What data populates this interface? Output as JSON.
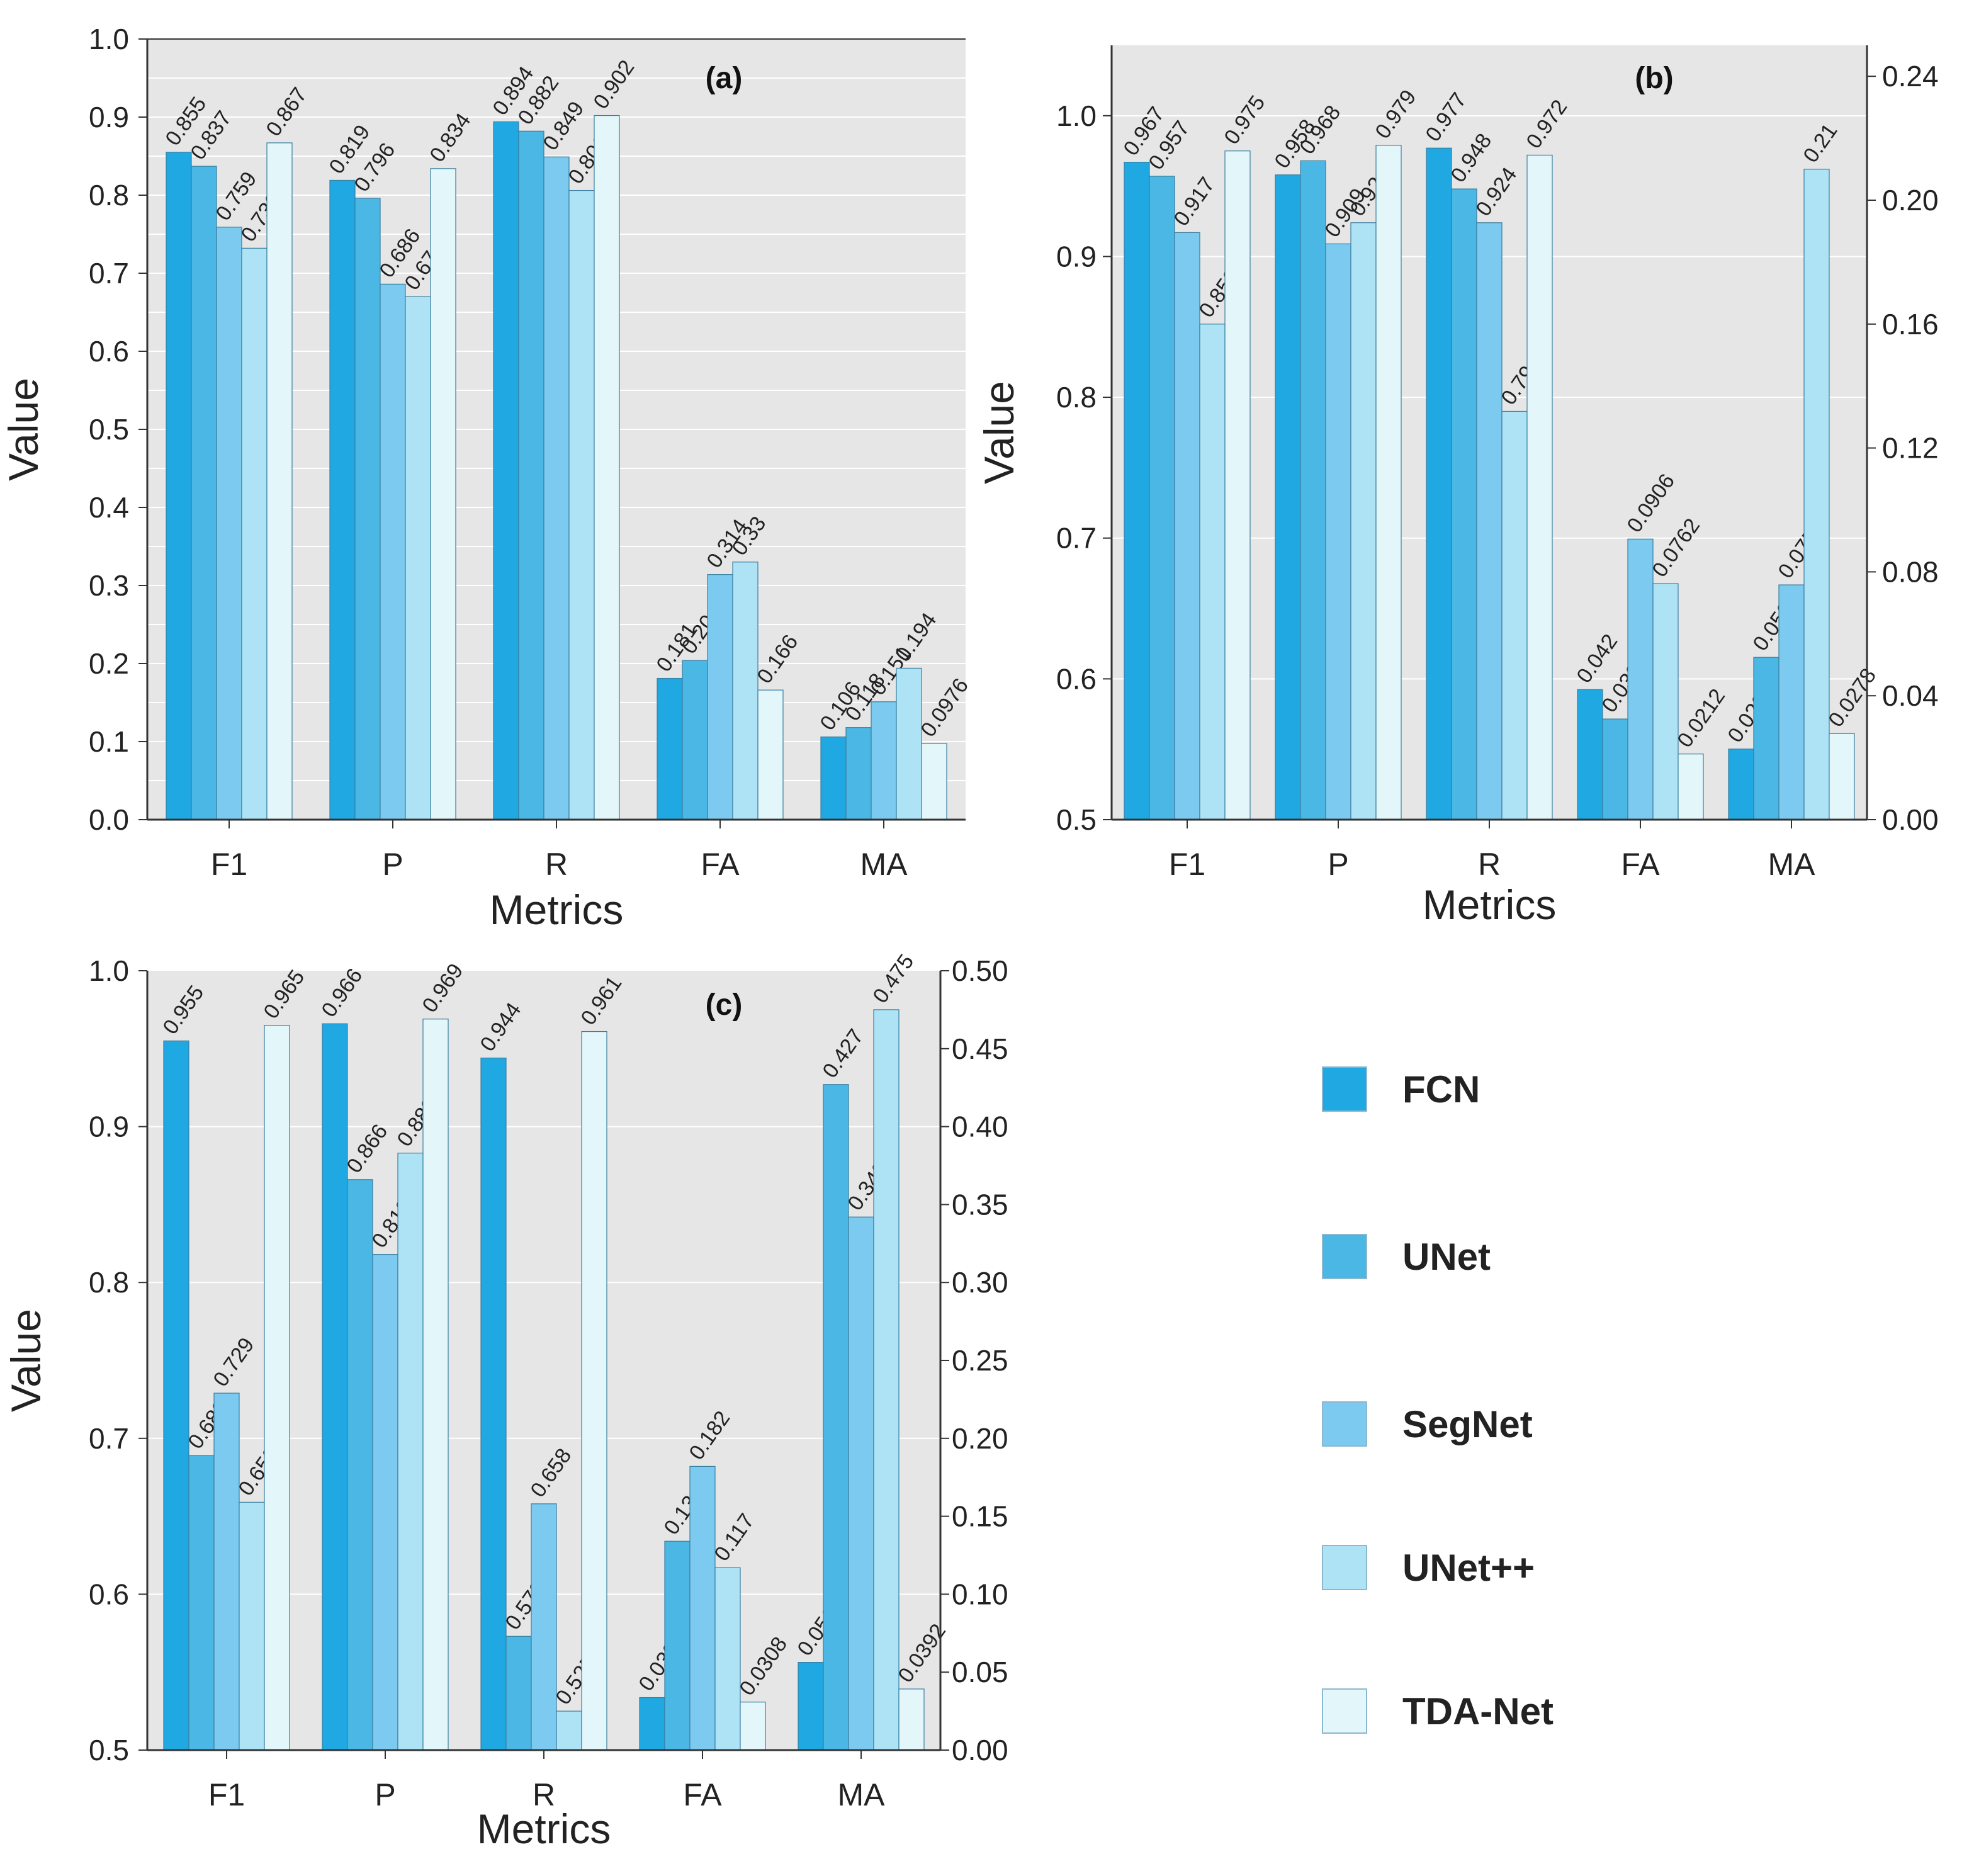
{
  "series_colors": [
    "#1fa8e1",
    "#4bb7e4",
    "#7ccaef",
    "#aee3f5",
    "#e3f6fa"
  ],
  "legend": [
    "FCN",
    "UNet",
    "SegNet",
    "UNet++",
    "TDA-Net"
  ],
  "chart_data": [
    {
      "type": "bar",
      "panel_label": "(a)",
      "xlabel": "Metrics",
      "ylabel": "Value",
      "categories": [
        "F1",
        "P",
        "R",
        "FA",
        "MA"
      ],
      "ylim": [
        0,
        1.0
      ],
      "yticks": [
        "0.0",
        "0.1",
        "0.2",
        "0.3",
        "0.4",
        "0.5",
        "0.6",
        "0.7",
        "0.8",
        "0.9",
        "1.0"
      ],
      "y2ticks": [],
      "series": [
        {
          "name": "FCN",
          "values": [
            0.855,
            0.819,
            0.894,
            0.181,
            0.106
          ],
          "labels": [
            "0.855",
            "0.819",
            "0.894",
            "0.181",
            "0.106"
          ]
        },
        {
          "name": "UNet",
          "values": [
            0.837,
            0.796,
            0.882,
            0.204,
            0.118
          ],
          "labels": [
            "0.837",
            "0.796",
            "0.882",
            "0.204",
            "0.118"
          ]
        },
        {
          "name": "SegNet",
          "values": [
            0.759,
            0.686,
            0.849,
            0.314,
            0.151
          ],
          "labels": [
            "0.759",
            "0.686",
            "0.849",
            "0.314",
            "0.151"
          ]
        },
        {
          "name": "UNet++",
          "values": [
            0.732,
            0.67,
            0.806,
            0.33,
            0.194
          ],
          "labels": [
            "0.732",
            "0.67",
            "0.806",
            "0.33",
            "0.194"
          ]
        },
        {
          "name": "TDA-Net",
          "values": [
            0.867,
            0.834,
            0.902,
            0.166,
            0.0976
          ],
          "labels": [
            "0.867",
            "0.834",
            "0.902",
            "0.166",
            "0.0976"
          ]
        }
      ]
    },
    {
      "type": "bar",
      "panel_label": "(b)",
      "xlabel": "Metrics",
      "ylabel": "Value",
      "categories": [
        "F1",
        "P",
        "R",
        "FA",
        "MA"
      ],
      "ylim": [
        0.5,
        1.05
      ],
      "y2lim": [
        0,
        0.25
      ],
      "secondary_axis_categories": [
        "FA",
        "MA"
      ],
      "yticks": [
        "0.5",
        "0.6",
        "0.7",
        "0.8",
        "0.9",
        "1.0"
      ],
      "y2ticks": [
        "0.00",
        "0.04",
        "0.08",
        "0.12",
        "0.16",
        "0.20",
        "0.24"
      ],
      "series": [
        {
          "name": "FCN",
          "values": [
            0.967,
            0.958,
            0.977,
            0.042,
            0.0228
          ],
          "labels": [
            "0.967",
            "0.958",
            "0.977",
            "0.042",
            "0.0228"
          ]
        },
        {
          "name": "UNet",
          "values": [
            0.957,
            0.968,
            0.948,
            0.0325,
            0.0524
          ],
          "labels": [
            "0.957",
            "0.968",
            "0.948",
            "0.0325",
            "0.0524"
          ]
        },
        {
          "name": "SegNet",
          "values": [
            0.917,
            0.909,
            0.924,
            0.0906,
            0.0758
          ],
          "labels": [
            "0.917",
            "0.909",
            "0.924",
            "0.0906",
            "0.0758"
          ]
        },
        {
          "name": "UNet++",
          "values": [
            0.852,
            0.924,
            0.79,
            0.0762,
            0.21
          ],
          "labels": [
            "0.852",
            "0.924",
            "0.79",
            "0.0762",
            "0.21"
          ]
        },
        {
          "name": "TDA-Net",
          "values": [
            0.975,
            0.979,
            0.972,
            0.0212,
            0.0278
          ],
          "labels": [
            "0.975",
            "0.979",
            "0.972",
            "0.0212",
            "0.0278"
          ]
        }
      ]
    },
    {
      "type": "bar",
      "panel_label": "(c)",
      "xlabel": "Metrics",
      "ylabel": "Value",
      "categories": [
        "F1",
        "P",
        "R",
        "FA",
        "MA"
      ],
      "ylim": [
        0.5,
        1.0
      ],
      "y2lim": [
        0,
        0.5
      ],
      "secondary_axis_categories": [
        "FA",
        "MA"
      ],
      "yticks": [
        "0.5",
        "0.6",
        "0.7",
        "0.8",
        "0.9",
        "1.0"
      ],
      "y2ticks": [
        "0.00",
        "0.05",
        "0.10",
        "0.15",
        "0.20",
        "0.25",
        "0.30",
        "0.35",
        "0.40",
        "0.45",
        "0.50"
      ],
      "series": [
        {
          "name": "FCN",
          "values": [
            0.955,
            0.966,
            0.944,
            0.0337,
            0.0563
          ],
          "labels": [
            "0.955",
            "0.966",
            "0.944",
            "0.0337",
            "0.0563"
          ]
        },
        {
          "name": "UNet",
          "values": [
            0.689,
            0.866,
            0.573,
            0.134,
            0.427
          ],
          "labels": [
            "0.689",
            "0.866",
            "0.573",
            "0.134",
            "0.427"
          ]
        },
        {
          "name": "SegNet",
          "values": [
            0.729,
            0.818,
            0.658,
            0.182,
            0.342
          ],
          "labels": [
            "0.729",
            "0.818",
            "0.658",
            "0.182",
            "0.342"
          ]
        },
        {
          "name": "UNet++",
          "values": [
            0.659,
            0.883,
            0.525,
            0.117,
            0.475
          ],
          "labels": [
            "0.659",
            "0.883",
            "0.525",
            "0.117",
            "0.475"
          ]
        },
        {
          "name": "TDA-Net",
          "values": [
            0.965,
            0.969,
            0.961,
            0.0308,
            0.0392
          ],
          "labels": [
            "0.965",
            "0.969",
            "0.961",
            "0.0308",
            "0.0392"
          ]
        }
      ]
    }
  ]
}
